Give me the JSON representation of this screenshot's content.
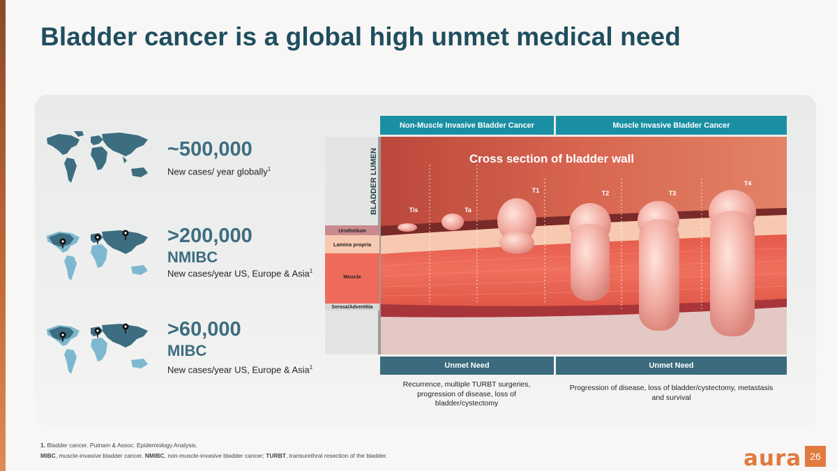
{
  "slide": {
    "title": "Bladder cancer is a global high unmet medical need",
    "page_number": "26",
    "logo": "aura"
  },
  "stats": [
    {
      "number": "~500,000",
      "subtitle": "",
      "description": "New cases/ year globally",
      "footnote_ref": "1"
    },
    {
      "number": ">200,000",
      "subtitle": "NMIBC",
      "description": "New cases/year US, Europe & Asia",
      "footnote_ref": "1"
    },
    {
      "number": ">60,000",
      "subtitle": "MIBC",
      "description": "New cases/year US, Europe & Asia",
      "footnote_ref": "1"
    }
  ],
  "maps": [
    "world-map-icon",
    "world-map-pins-icon",
    "world-map-pins-icon"
  ],
  "headers": {
    "nmibc": "Non-Muscle Invasive Bladder Cancer",
    "mibc": "Muscle Invasive Bladder Cancer"
  },
  "diagram": {
    "title": "Cross section of bladder wall",
    "lumen_label": "BLADDER LUMEN",
    "layers": [
      "Urothelium",
      "Lamina propria",
      "Muscle",
      "Serosa/Adventitia"
    ],
    "stages": [
      "Tis",
      "Ta",
      "T1",
      "T2",
      "T3",
      "T4"
    ]
  },
  "unmet_need": {
    "label_1": "Unmet Need",
    "label_2": "Unmet Need",
    "text_1": "Recurrence, multiple TURBT surgeries, progression of disease, loss of bladder/cystectomy",
    "text_2": "Progression of disease, loss of bladder/cystectomy, metastasis and survival"
  },
  "footnotes": {
    "ref_num": "1.",
    "ref_text": "Bladder cancer. Putnam & Assoc. Epidemiology Analysis.",
    "abbr": [
      {
        "term": "MIBC",
        "def": ", muscle-invasive bladder cancer. "
      },
      {
        "term": "NMIBC",
        "def": ", non-muscle-invasive bladder cancer; "
      },
      {
        "term": "TURBT",
        "def": ", transurethral resection of the bladder."
      }
    ]
  },
  "colors": {
    "title": "#1f4e5f",
    "stat": "#3d6d80",
    "header_teal": "#1a8fa3",
    "need_blue": "#3b6b7d",
    "accent_orange": "#e07a3f"
  }
}
